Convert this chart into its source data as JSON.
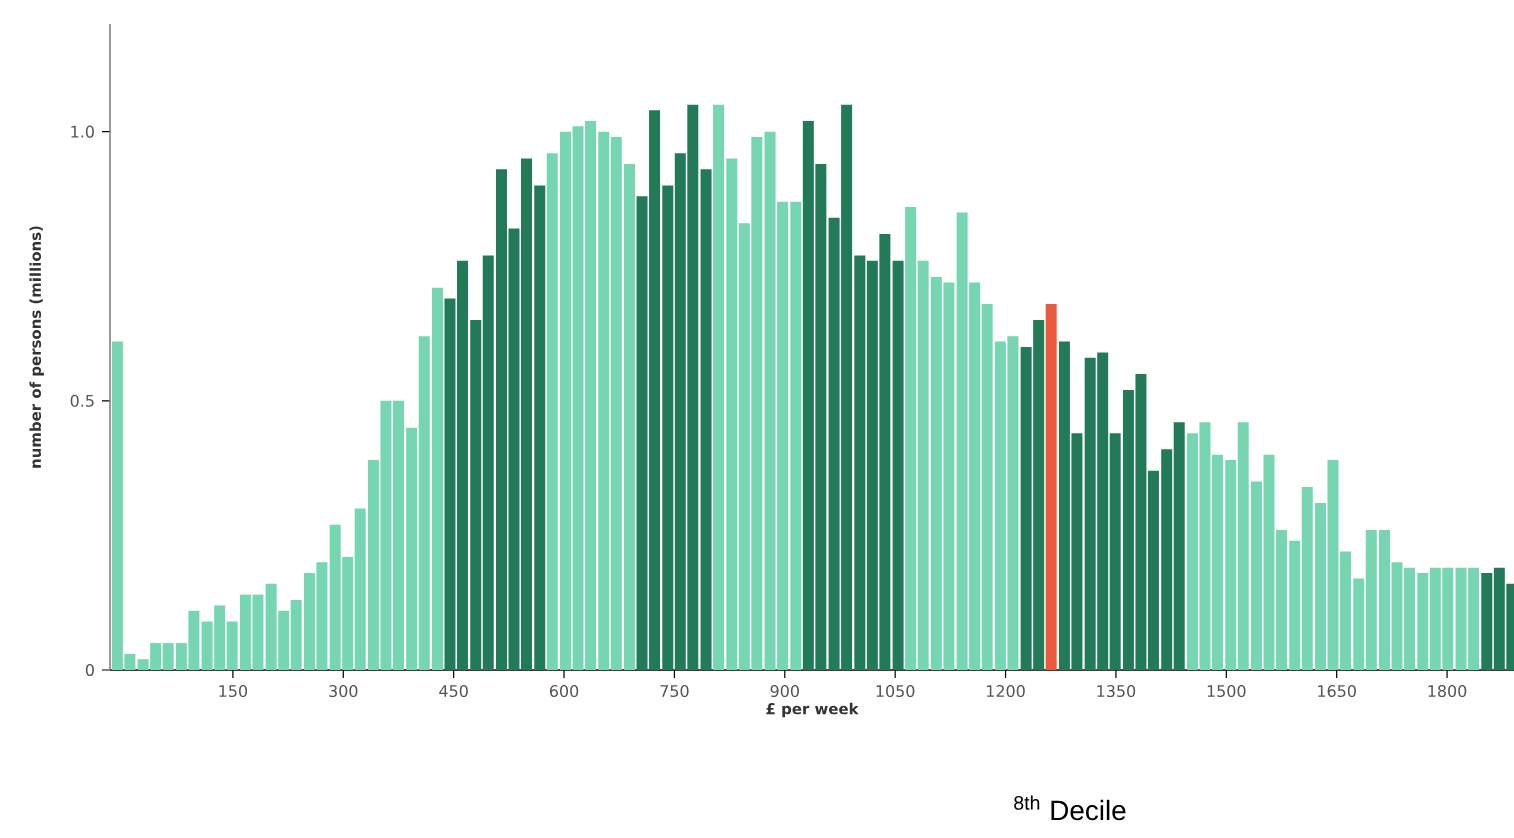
{
  "chart_data": {
    "type": "bar",
    "xlabel": "£ per week",
    "ylabel": "number of persons (millions)",
    "annotations": [
      "$^{8th}$ Decile"
    ],
    "x": [
      -7,
      10,
      28,
      45,
      62,
      80,
      97,
      115,
      132,
      149,
      167,
      184,
      202,
      219,
      236,
      254,
      271,
      289,
      306,
      323,
      341,
      358,
      375,
      393,
      410,
      428,
      445,
      462,
      480,
      497,
      515,
      532,
      549,
      567,
      584,
      602,
      619,
      636,
      654,
      671,
      689,
      706,
      723,
      741,
      758,
      775,
      793,
      810,
      828,
      845,
      862,
      880,
      897,
      915,
      932,
      949,
      967,
      984,
      1002,
      1019,
      1036,
      1054,
      1071,
      1088,
      1106,
      1123,
      1141,
      1158,
      1175,
      1193,
      1210,
      1228,
      1245,
      1262,
      1280,
      1297,
      1315,
      1332,
      1349,
      1367,
      1384,
      1401,
      1419,
      1436,
      1454,
      1471,
      1488,
      1506,
      1523,
      1541,
      1558,
      1575,
      1593,
      1610,
      1628,
      1645,
      1662,
      1680,
      1697,
      1715,
      1732,
      1749,
      1767,
      1784,
      1801,
      1819,
      1836,
      1854,
      1871,
      1888
    ],
    "values": [
      0.61,
      0.03,
      0.02,
      0.05,
      0.05,
      0.05,
      0.11,
      0.09,
      0.12,
      0.09,
      0.14,
      0.14,
      0.16,
      0.11,
      0.13,
      0.18,
      0.2,
      0.27,
      0.21,
      0.3,
      0.39,
      0.5,
      0.5,
      0.45,
      0.62,
      0.71,
      0.69,
      0.76,
      0.65,
      0.77,
      0.93,
      0.82,
      0.95,
      0.9,
      0.96,
      1.0,
      1.01,
      1.02,
      1.0,
      0.99,
      0.94,
      0.88,
      1.04,
      0.9,
      0.96,
      1.05,
      0.93,
      1.05,
      0.95,
      0.83,
      0.99,
      1.0,
      0.87,
      0.87,
      1.02,
      0.94,
      0.84,
      1.05,
      0.77,
      0.76,
      0.81,
      0.76,
      0.86,
      0.76,
      0.73,
      0.72,
      0.85,
      0.72,
      0.68,
      0.61,
      0.62,
      0.6,
      0.65,
      0.68,
      0.61,
      0.44,
      0.58,
      0.59,
      0.44,
      0.52,
      0.55,
      0.37,
      0.41,
      0.46,
      0.44,
      0.46,
      0.4,
      0.39,
      0.46,
      0.35,
      0.4,
      0.26,
      0.24,
      0.34,
      0.31,
      0.39,
      0.22,
      0.17,
      0.26,
      0.26,
      0.2,
      0.19,
      0.18,
      0.19,
      0.19,
      0.19,
      0.19,
      0.18,
      0.19,
      0.16
    ],
    "colors": [
      "#75d6b1",
      "#75d6b1",
      "#75d6b1",
      "#75d6b1",
      "#75d6b1",
      "#75d6b1",
      "#75d6b1",
      "#75d6b1",
      "#75d6b1",
      "#75d6b1",
      "#75d6b1",
      "#75d6b1",
      "#75d6b1",
      "#75d6b1",
      "#75d6b1",
      "#75d6b1",
      "#75d6b1",
      "#75d6b1",
      "#75d6b1",
      "#75d6b1",
      "#75d6b1",
      "#75d6b1",
      "#75d6b1",
      "#75d6b1",
      "#75d6b1",
      "#75d6b1",
      "#237a58",
      "#237a58",
      "#237a58",
      "#237a58",
      "#237a58",
      "#237a58",
      "#237a58",
      "#237a58",
      "#75d6b1",
      "#75d6b1",
      "#75d6b1",
      "#75d6b1",
      "#75d6b1",
      "#75d6b1",
      "#75d6b1",
      "#237a58",
      "#237a58",
      "#237a58",
      "#237a58",
      "#237a58",
      "#237a58",
      "#75d6b1",
      "#75d6b1",
      "#75d6b1",
      "#75d6b1",
      "#75d6b1",
      "#75d6b1",
      "#75d6b1",
      "#237a58",
      "#237a58",
      "#237a58",
      "#237a58",
      "#237a58",
      "#237a58",
      "#237a58",
      "#237a58",
      "#75d6b1",
      "#75d6b1",
      "#75d6b1",
      "#75d6b1",
      "#75d6b1",
      "#75d6b1",
      "#75d6b1",
      "#75d6b1",
      "#75d6b1",
      "#237a58",
      "#237a58",
      "#ea5a3f",
      "#237a58",
      "#237a58",
      "#237a58",
      "#237a58",
      "#237a58",
      "#237a58",
      "#237a58",
      "#237a58",
      "#237a58",
      "#237a58",
      "#75d6b1",
      "#75d6b1",
      "#75d6b1",
      "#75d6b1",
      "#75d6b1",
      "#75d6b1",
      "#75d6b1",
      "#75d6b1",
      "#75d6b1",
      "#75d6b1",
      "#75d6b1",
      "#75d6b1",
      "#75d6b1",
      "#75d6b1",
      "#75d6b1",
      "#75d6b1",
      "#75d6b1",
      "#75d6b1",
      "#75d6b1",
      "#75d6b1",
      "#75d6b1",
      "#75d6b1",
      "#75d6b1",
      "#237a58",
      "#237a58",
      "#237a58"
    ],
    "xlim": [
      -17,
      1891
    ],
    "ylim": [
      0,
      1.2
    ],
    "xticks": [
      150,
      300,
      450,
      600,
      750,
      900,
      1050,
      1200,
      1350,
      1500,
      1650,
      1800
    ],
    "yticks": [
      0,
      0.5,
      {
        "value": 1,
        "label": "1.0"
      }
    ],
    "grid": false
  }
}
